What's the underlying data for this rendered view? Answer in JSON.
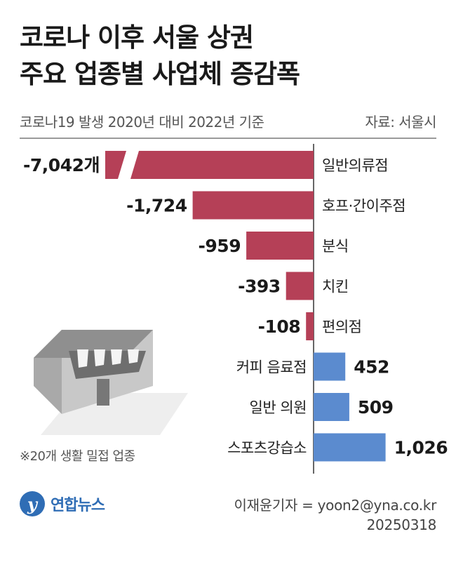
{
  "header": {
    "title_line1": "코로나 이후 서울 상권",
    "title_line2": "주요 업종별 사업체 증감폭",
    "subtitle": "코로나19 발생 2020년 대비 2022년 기준",
    "source": "자료: 서울시"
  },
  "chart_data": {
    "type": "bar",
    "orientation": "horizontal",
    "unit": "개",
    "categories": [
      "일반의류점",
      "호프·간이주점",
      "분식",
      "치킨",
      "편의점",
      "커피 음료점",
      "일반 의원",
      "스포츠강습소"
    ],
    "values": [
      -7042,
      -1724,
      -959,
      -393,
      -108,
      452,
      509,
      1026
    ],
    "value_labels": [
      "-7,042개",
      "-1,724",
      "-959",
      "-393",
      "-108",
      "452",
      "509",
      "1,026"
    ],
    "truncated_bars": [
      "일반의류점"
    ],
    "colors": {
      "negative": "#b54057",
      "positive": "#5b8bcf"
    }
  },
  "footnote": "※20개 생활 밀접 업종",
  "branding": {
    "logo_mark": "y",
    "logo_text": "연합뉴스"
  },
  "credit": {
    "reporter": "이재윤기자 = yoon2@yna.co.kr",
    "date": "20250318"
  }
}
